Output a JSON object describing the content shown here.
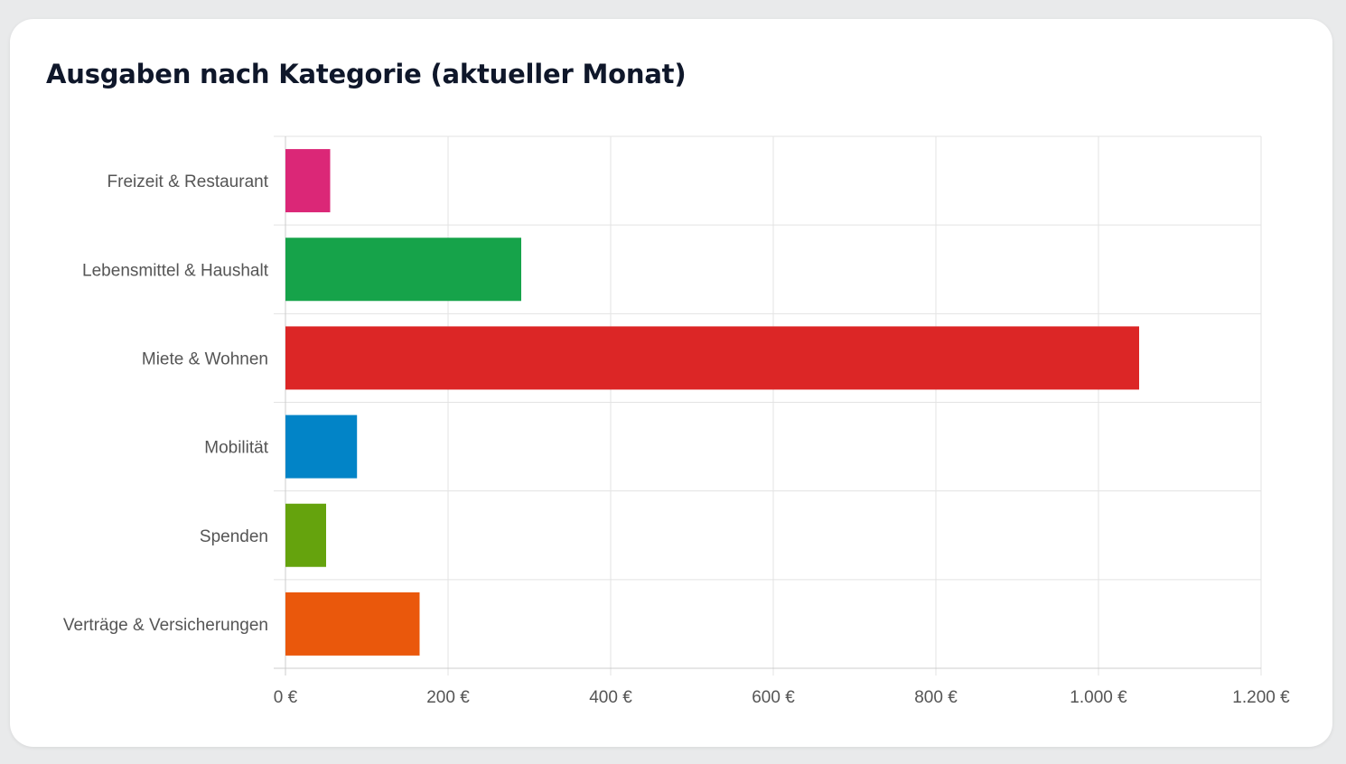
{
  "card": {
    "title": "Ausgaben nach Kategorie (aktueller Monat)"
  },
  "chart_data": {
    "type": "bar",
    "orientation": "horizontal",
    "title": "Ausgaben nach Kategorie (aktueller Monat)",
    "categories": [
      "Freizeit & Restaurant",
      "Lebensmittel & Haushalt",
      "Miete & Wohnen",
      "Mobilität",
      "Spenden",
      "Verträge & Versicherungen"
    ],
    "values": [
      55,
      290,
      1050,
      88,
      50,
      165
    ],
    "colors": [
      "#db2777",
      "#16a34a",
      "#dc2626",
      "#0284c7",
      "#65a30d",
      "#ea580c"
    ],
    "xlim": [
      0,
      1200
    ],
    "x_ticks": [
      0,
      200,
      400,
      600,
      800,
      1000,
      1200
    ],
    "x_tick_labels": [
      "0 €",
      "200 €",
      "400 €",
      "600 €",
      "800 €",
      "1.000 €",
      "1.200 €"
    ],
    "grid": true,
    "legend": "none",
    "xlabel": "",
    "ylabel": ""
  }
}
